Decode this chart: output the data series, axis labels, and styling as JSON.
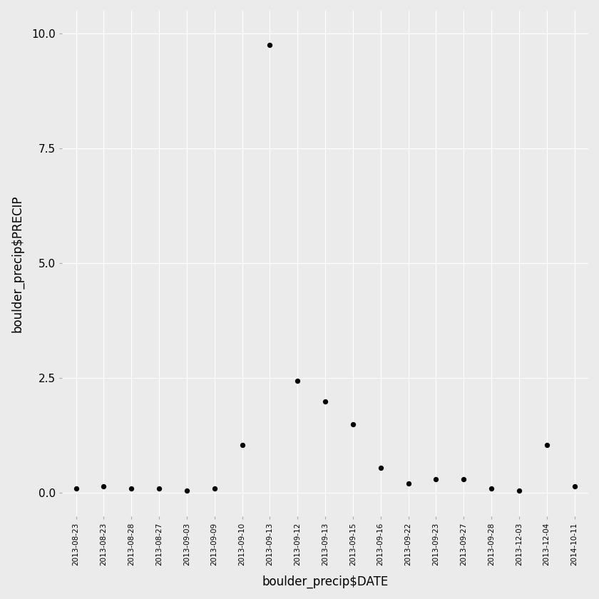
{
  "dates": [
    "2013-08-23",
    "2013-08-23",
    "2013-08-28",
    "2013-08-27",
    "2013-09-03",
    "2013-09-09",
    "2013-09-10",
    "2013-09-13",
    "2013-09-12",
    "2013-09-13",
    "2013-09-15",
    "2013-09-16",
    "2013-09-22",
    "2013-09-23",
    "2013-09-27",
    "2013-09-28",
    "2013-12-03",
    "2013-12-04",
    "2014-10-11"
  ],
  "precip": [
    0.1,
    0.15,
    0.1,
    0.1,
    0.05,
    0.1,
    1.05,
    9.75,
    2.45,
    2.0,
    1.5,
    0.55,
    0.2,
    0.3,
    0.3,
    0.1,
    0.05,
    1.05,
    0.15
  ],
  "xlabel": "boulder_precip$DATE",
  "ylabel": "boulder_precip$PRECIP",
  "ylim": [
    -0.5,
    10.5
  ],
  "yticks": [
    0.0,
    2.5,
    5.0,
    7.5,
    10.0
  ],
  "bg_color": "#EBEBEB",
  "grid_color": "#FFFFFF",
  "dot_color": "#000000",
  "dot_size": 18
}
